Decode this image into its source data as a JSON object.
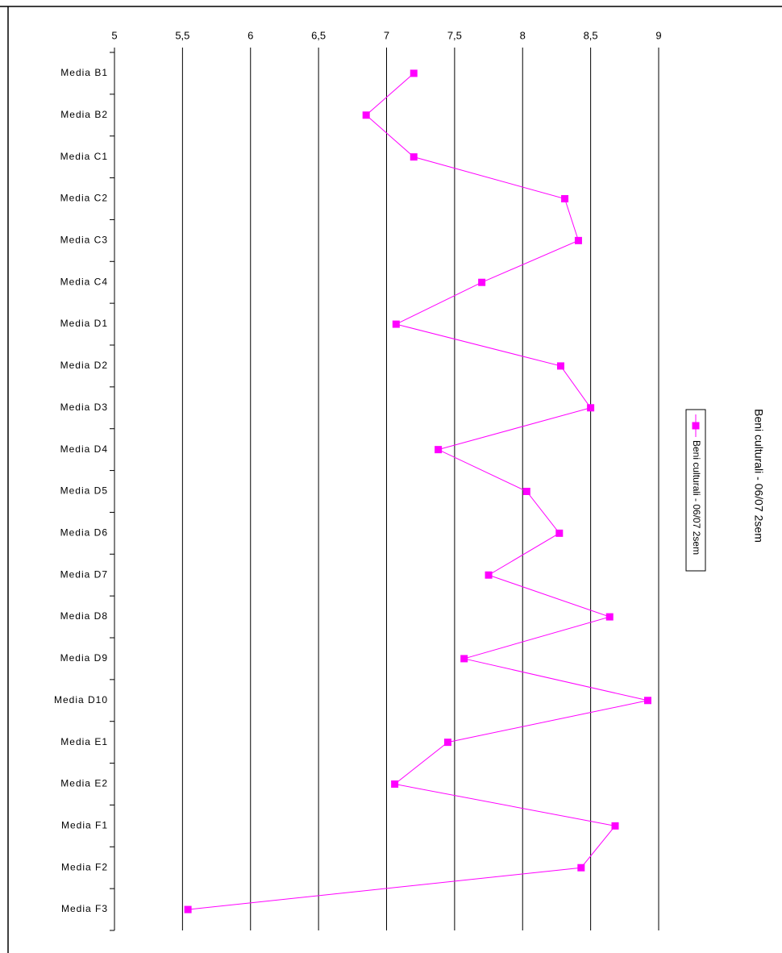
{
  "chart_data": {
    "type": "line",
    "orientation": "horizontal",
    "title": "Beni culturali - 06/07 2sem",
    "categories": [
      "Media B1",
      "Media B2",
      "Media C1",
      "Media C2",
      "Media C3",
      "Media C4",
      "Media D1",
      "Media D2",
      "Media D3",
      "Media D4",
      "Media D5",
      "Media D6",
      "Media D7",
      "Media D8",
      "Media D9",
      "Media D10",
      "Media E1",
      "Media E2",
      "Media F1",
      "Media F2",
      "Media F3"
    ],
    "series": [
      {
        "name": "Beni culturali - 06/07 2sem",
        "color": "#ff00ff",
        "values": [
          7.2,
          6.85,
          7.2,
          8.31,
          8.41,
          7.7,
          7.07,
          8.28,
          8.5,
          7.38,
          8.03,
          8.27,
          7.75,
          8.64,
          7.57,
          8.92,
          7.45,
          7.06,
          8.68,
          8.43,
          5.54
        ]
      }
    ],
    "xlim": [
      5,
      9
    ],
    "xticks": [
      5,
      {
        "value": 5.5,
        "label": "5,5"
      },
      6,
      {
        "value": 6.5,
        "label": "6,5"
      },
      7,
      {
        "value": 7.5,
        "label": "7,5"
      },
      8,
      {
        "value": 8.5,
        "label": "8,5"
      },
      9
    ],
    "grid": true,
    "legend": "right"
  }
}
